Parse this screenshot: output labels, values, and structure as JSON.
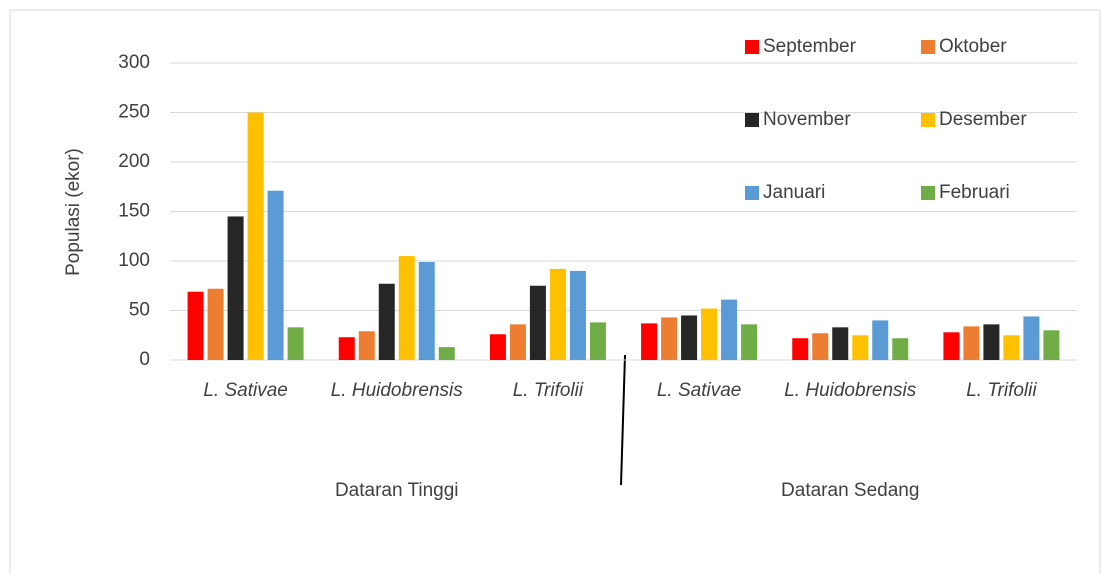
{
  "chart_data": {
    "type": "bar",
    "y_label": "Populasi (ekor)",
    "categories": [
      "L. Sativae",
      "L. Huidobrensis",
      "L. Trifolii",
      "L. Sativae",
      "L. Huidobrensis",
      "L. Trifolii"
    ],
    "group_labels": [
      "Dataran Tinggi",
      "Dataran Sedang"
    ],
    "series": [
      {
        "name": "September",
        "color": "#ff0000",
        "values": [
          69,
          23,
          26,
          37,
          22,
          28
        ]
      },
      {
        "name": "Oktober",
        "color": "#ed7d31",
        "values": [
          72,
          29,
          36,
          43,
          27,
          34
        ]
      },
      {
        "name": "November",
        "color": "#262626",
        "values": [
          145,
          77,
          75,
          45,
          33,
          36
        ]
      },
      {
        "name": "Desember",
        "color": "#ffc000",
        "values": [
          250,
          105,
          92,
          52,
          25,
          25
        ]
      },
      {
        "name": "Januari",
        "color": "#5b9bd5",
        "values": [
          171,
          99,
          90,
          61,
          40,
          44
        ]
      },
      {
        "name": "Februari",
        "color": "#70ad47",
        "values": [
          33,
          13,
          38,
          36,
          22,
          30
        ]
      }
    ],
    "ylim": [
      0,
      300
    ],
    "yticks": [
      0,
      50,
      100,
      150,
      200,
      250,
      300
    ],
    "grid": true,
    "legend": "upper right"
  }
}
